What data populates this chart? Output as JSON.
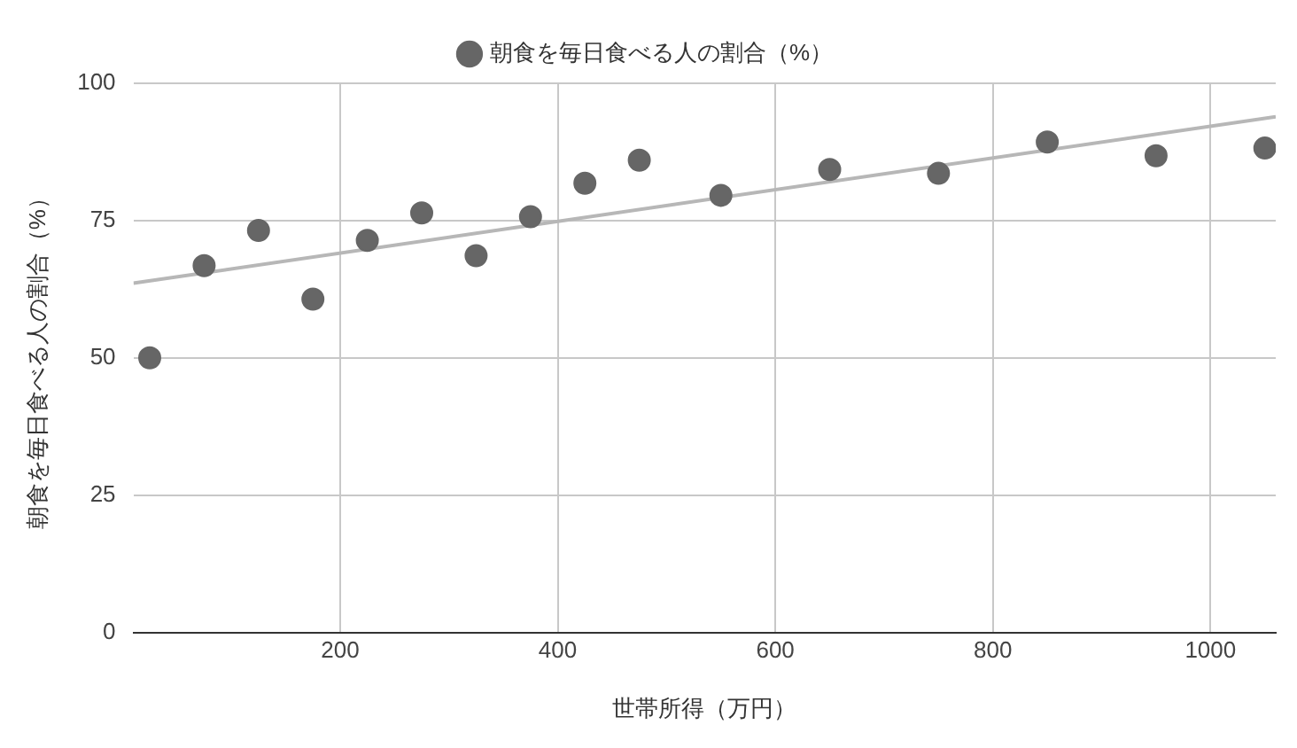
{
  "chart_data": {
    "type": "scatter",
    "xlabel": "世帯所得（万円）",
    "ylabel": "朝食を毎日食べる人の割合（%）",
    "xlim": [
      10,
      1060
    ],
    "xticks": [
      200,
      400,
      600,
      800,
      1000
    ],
    "ylim": [
      0,
      100
    ],
    "yticks": [
      0,
      25,
      50,
      75,
      100
    ],
    "grid": true,
    "legend": "top",
    "marker": "circle",
    "series": [
      {
        "name": "朝食を毎日食べる人の割合（%）",
        "color": "#666666",
        "x": [
          25,
          75,
          125,
          175,
          225,
          275,
          325,
          375,
          425,
          475,
          550,
          650,
          750,
          850,
          950,
          1050
        ],
        "values": [
          50,
          66.8,
          73.2,
          60.7,
          71.4,
          76.4,
          68.6,
          75.7,
          81.8,
          86,
          79.6,
          84.3,
          83.6,
          89.3,
          86.8,
          88.2
        ]
      },
      {
        "type": "line",
        "color": "#b7b7b7",
        "x": [
          10,
          1060
        ],
        "values": [
          63.6,
          93.9
        ],
        "marker": "none"
      }
    ]
  }
}
